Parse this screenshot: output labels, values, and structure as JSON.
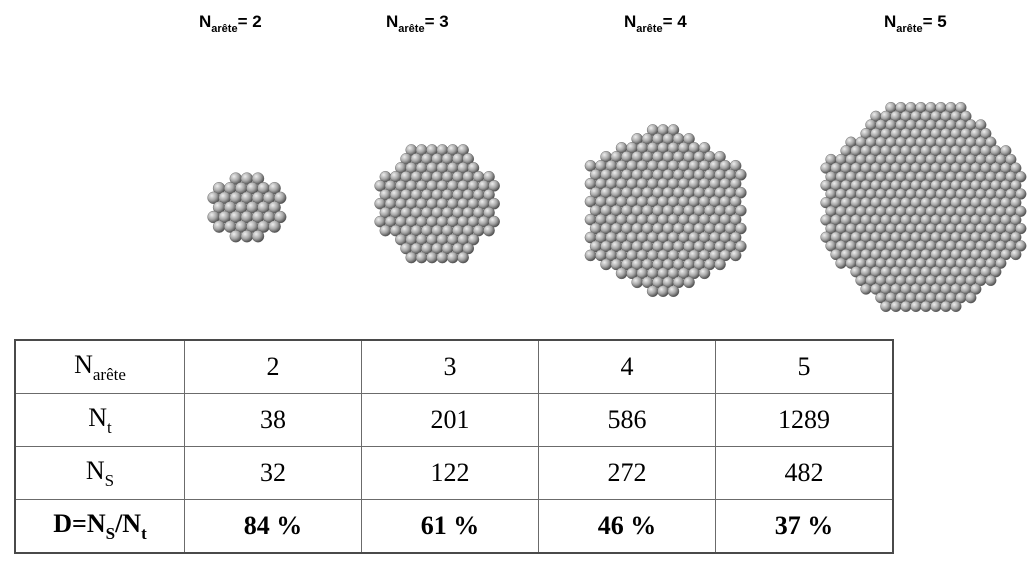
{
  "titles": [
    {
      "main": "N",
      "sub": "arête",
      "rest": "= 2"
    },
    {
      "main": "N",
      "sub": "arête",
      "rest": "= 3"
    },
    {
      "main": "N",
      "sub": "arête",
      "rest": "= 4"
    },
    {
      "main": "N",
      "sub": "arête",
      "rest": "= 5"
    }
  ],
  "table": {
    "rows": [
      {
        "label_main": "N",
        "label_sub": "arête",
        "label_rest": "",
        "values": [
          "2",
          "3",
          "4",
          "5"
        ]
      },
      {
        "label_main": "N",
        "label_sub": "t",
        "label_rest": "",
        "values": [
          "38",
          "201",
          "586",
          "1289"
        ]
      },
      {
        "label_main": "N",
        "label_sub": "S",
        "label_rest": "",
        "values": [
          "32",
          "122",
          "272",
          "482"
        ]
      },
      {
        "label_main": "D=N",
        "label_sub": "S",
        "label_rest": "/N",
        "label_sub2": "t",
        "values": [
          "84 %",
          "61 %",
          "46 %",
          "37 %"
        ]
      }
    ]
  },
  "colors": {
    "sphere_light": "#eeeeee",
    "sphere_mid": "#a6a6a6",
    "sphere_dark": "#4d4d4d"
  }
}
